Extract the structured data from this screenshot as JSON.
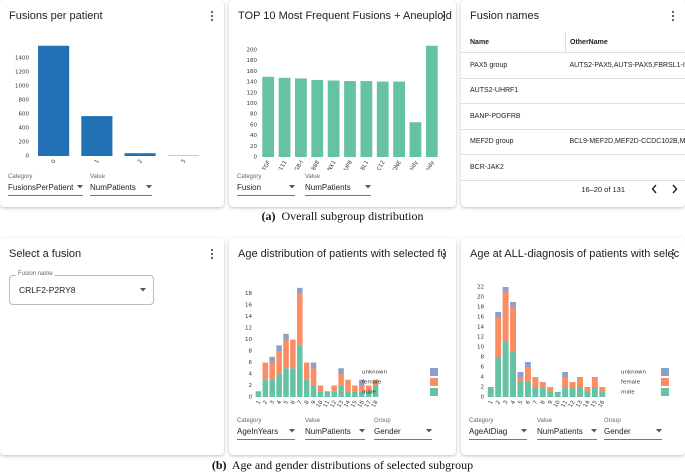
{
  "chart_data": [
    {
      "type": "bar",
      "title": "Fusions per patient",
      "categories": [
        "0",
        "1",
        "2",
        "3"
      ],
      "values": [
        1575,
        570,
        40,
        5
      ],
      "color": "#2271b5",
      "ylim": [
        0,
        1600
      ],
      "yticks": [
        0,
        200,
        400,
        600,
        800,
        1000,
        1200,
        1400
      ],
      "grid": false,
      "controls": [
        {
          "label": "Category",
          "value": "FusionsPerPatient"
        },
        {
          "label": "Value",
          "value": "NumPatients"
        }
      ]
    },
    {
      "type": "bar",
      "title": "TOP 10 Most Frequent Fusions + Aneuploid",
      "categories": [
        "GRK1S-TGF",
        "LOH1S-CH111",
        "ATRN-TGF3/CDGB-I",
        "KATNA-CRB888",
        "KOHN-RUNX1",
        "NDTH-NUP8",
        "BCR-ABL1",
        "MET2-CDC12",
        "PAX5-QNE",
        "Hypodiploidy",
        "Hyperdiploidy"
      ],
      "values": [
        150,
        148,
        147,
        144,
        143,
        142,
        142,
        141,
        141,
        65,
        208
      ],
      "color": "#66c2a5",
      "ylim": [
        0,
        215
      ],
      "yticks": [
        0,
        20,
        40,
        60,
        80,
        100,
        120,
        140,
        160,
        180,
        200
      ],
      "grid": false,
      "controls": [
        {
          "label": "Category",
          "value": "Fusion"
        },
        {
          "label": "Value",
          "value": "NumPatients"
        }
      ]
    },
    {
      "type": "stacked_bar",
      "title": "Age distribution of patients with selected fu",
      "categories": [
        "1",
        "2",
        "3",
        "4",
        "5",
        "6",
        "7",
        "8",
        "9",
        "10",
        "11",
        "12",
        "13",
        "14",
        "15",
        "16",
        "17",
        "18"
      ],
      "series": [
        {
          "name": "male",
          "color": "#66c2a5",
          "values": [
            1,
            3,
            3,
            4,
            5,
            5,
            9,
            3,
            2,
            1,
            1,
            1,
            2,
            1,
            1,
            1,
            1,
            2
          ]
        },
        {
          "name": "female",
          "color": "#fc8d62",
          "values": [
            0,
            3,
            3,
            4,
            5,
            5,
            9,
            3,
            3,
            1,
            0,
            1,
            2,
            2,
            1,
            1,
            1,
            1
          ]
        },
        {
          "name": "unknown",
          "color": "#8da0cb",
          "values": [
            0,
            0,
            1,
            1,
            1,
            0,
            1,
            0,
            1,
            0,
            0,
            0,
            1,
            0,
            0,
            1,
            0,
            0
          ]
        }
      ],
      "ylim": [
        0,
        19.5
      ],
      "yticks": [
        0,
        2,
        4,
        6,
        8,
        10,
        12,
        14,
        16,
        18
      ],
      "grid": false,
      "legend": "right",
      "controls": [
        {
          "label": "Category",
          "value": "AgeInYears"
        },
        {
          "label": "Value",
          "value": "NumPatients"
        },
        {
          "label": "Group",
          "value": "Gender"
        }
      ]
    },
    {
      "type": "stacked_bar",
      "title": "Age at ALL-diagnosis of patients with selec",
      "categories": [
        "1",
        "2",
        "3",
        "4",
        "5",
        "6",
        "7",
        "8",
        "9",
        "10",
        "11",
        "12",
        "13",
        "14",
        "15",
        "16"
      ],
      "series": [
        {
          "name": "male",
          "color": "#66c2a5",
          "values": [
            2,
            8,
            11,
            9,
            3,
            3,
            2,
            2,
            1,
            1,
            2,
            2,
            2,
            1,
            2,
            1
          ]
        },
        {
          "name": "female",
          "color": "#fc8d62",
          "values": [
            0,
            8,
            10,
            9,
            1,
            3,
            2,
            1,
            1,
            0,
            2,
            1,
            2,
            1,
            2,
            1
          ]
        },
        {
          "name": "unknown",
          "color": "#8da0cb",
          "values": [
            0,
            1,
            1,
            1,
            1,
            1,
            0,
            0,
            0,
            0,
            1,
            0,
            0,
            0,
            0,
            0
          ]
        }
      ],
      "ylim": [
        0,
        23
      ],
      "yticks": [
        0,
        2,
        4,
        6,
        8,
        10,
        12,
        14,
        16,
        18,
        20,
        22
      ],
      "grid": false,
      "legend": "right",
      "controls": [
        {
          "label": "Category",
          "value": "AgeAtDiag"
        },
        {
          "label": "Value",
          "value": "NumPatients"
        },
        {
          "label": "Group",
          "value": "Gender"
        }
      ]
    }
  ],
  "table": {
    "title": "Fusion names",
    "columns": [
      "Name",
      "OtherName"
    ],
    "rows": [
      [
        "PAX5 group",
        "AUTS2-PAX5,AUTS-PAX5,FBRSL1-I"
      ],
      [
        "AUTS2-UHRF1"
      ],
      [
        "BANP-PDGFRB"
      ],
      [
        "MEF2D group",
        "BCL9-MEF2D,MEF2D-CCDC102B,M"
      ],
      [
        "BCR-JAK2"
      ]
    ],
    "pagination": "16–20 of 131"
  },
  "select": {
    "title": "Select a fusion",
    "field_label": "Fusion name",
    "value": "CRLF2-P2RY8"
  },
  "captions": [
    {
      "tag": "(a)",
      "text": "Overall subgroup distribution"
    },
    {
      "tag": "(b)",
      "text": "Age and gender distributions of selected subgroup"
    }
  ]
}
